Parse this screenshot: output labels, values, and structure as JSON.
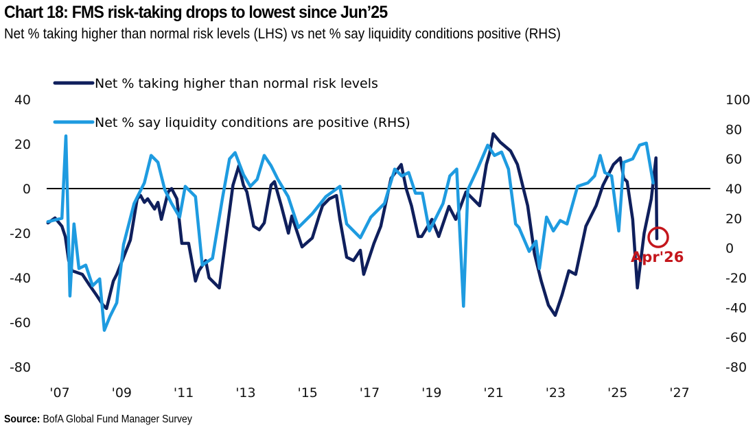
{
  "header": {
    "title": "Chart 18: FMS risk-taking drops to lowest since Jun’25",
    "subtitle": "Net % taking higher than normal risk levels (LHS) vs net % say liquidity conditions positive (RHS)"
  },
  "footer": {
    "source_label": "Source:",
    "source_text": " BofA Global Fund Manager Survey"
  },
  "colors": {
    "risk_series": "#0f1f5c",
    "liquidity_series": "#1e9be0",
    "zero_line": "#000000",
    "annotation": "#c4161c"
  },
  "chart_data": {
    "type": "line",
    "title": "Chart 18: FMS risk-taking drops to lowest since Jun’25",
    "subtitle": "Net % taking higher than normal risk levels (LHS) vs net % say liquidity conditions positive (RHS)",
    "xlabel": "",
    "ylabel_left": "",
    "ylabel_right": "",
    "x_range": [
      2006.6,
      2028.2
    ],
    "x_ticks": [
      2007,
      2009,
      2011,
      2013,
      2015,
      2017,
      2019,
      2021,
      2023,
      2025,
      2027
    ],
    "x_tick_labels": [
      "'07",
      "'09",
      "'11",
      "'13",
      "'15",
      "'17",
      "'19",
      "'21",
      "'23",
      "'25",
      "'27"
    ],
    "ylim_left": [
      -80,
      40
    ],
    "y_ticks_left": [
      40,
      20,
      0,
      -20,
      -40,
      -60,
      -80
    ],
    "y_tick_labels_left": [
      "40",
      "20",
      "0",
      "-20",
      "-40",
      "-60",
      "-80"
    ],
    "ylim_right": [
      -80,
      100
    ],
    "y_ticks_right": [
      100,
      80,
      60,
      40,
      20,
      0,
      -20,
      -40,
      -60,
      -80
    ],
    "y_tick_labels_right": [
      "100",
      "80",
      "60",
      "40",
      "20",
      "0",
      "-20",
      "-40",
      "-60",
      "-80"
    ],
    "reference_line": {
      "axis": "left",
      "value": 0
    },
    "grid": false,
    "legend_position": "top-left",
    "series": [
      {
        "name": "Net % taking higher than normal risk levels",
        "axis": "left",
        "x": [
          2006.62,
          2006.85,
          2007.07,
          2007.18,
          2007.29,
          2007.4,
          2007.73,
          2007.95,
          2008.18,
          2008.4,
          2008.51,
          2008.62,
          2008.73,
          2008.84,
          2009.06,
          2009.28,
          2009.5,
          2009.61,
          2009.73,
          2009.84,
          2010.06,
          2010.17,
          2010.28,
          2010.5,
          2010.61,
          2010.78,
          2010.94,
          2011.16,
          2011.38,
          2011.49,
          2011.71,
          2011.82,
          2012.15,
          2012.59,
          2012.78,
          2012.93,
          2013.04,
          2013.26,
          2013.44,
          2013.6,
          2013.82,
          2013.93,
          2014.15,
          2014.38,
          2014.49,
          2014.82,
          2015.15,
          2015.37,
          2015.48,
          2015.7,
          2015.93,
          2016.04,
          2016.26,
          2016.48,
          2016.7,
          2016.81,
          2017.14,
          2017.36,
          2017.69,
          2018.02,
          2018.18,
          2018.35,
          2018.57,
          2018.68,
          2019.01,
          2019.23,
          2019.56,
          2019.78,
          2020.11,
          2020.55,
          2020.77,
          2020.88,
          2020.99,
          2021.21,
          2021.55,
          2021.77,
          2021.99,
          2022.1,
          2022.32,
          2022.54,
          2022.77,
          2022.99,
          2023.21,
          2023.43,
          2023.65,
          2023.98,
          2024.31,
          2024.53,
          2024.87,
          2025.09,
          2025.2,
          2025.31,
          2025.49,
          2025.64,
          2025.86,
          2026.09,
          2026.24,
          2026.27
        ],
        "values": [
          -15.4,
          -13.2,
          -16.9,
          -21.5,
          -32.3,
          -36.9,
          -38.5,
          -43.1,
          -47.7,
          -52.3,
          -53.8,
          -47.7,
          -41.5,
          -38.5,
          -30.8,
          -23.1,
          -4.6,
          -3.1,
          -6.2,
          -4.6,
          -9.2,
          -6.2,
          -13.8,
          -1.5,
          0.0,
          -4.6,
          -24.6,
          -24.6,
          -41.5,
          -36.9,
          -32.3,
          -40.0,
          -44.6,
          1.5,
          10.2,
          1.5,
          -1.5,
          -16.9,
          -18.5,
          -15.4,
          1.5,
          3.1,
          -7.7,
          -20.0,
          -12.3,
          -26.2,
          -22.2,
          -12.3,
          -7.7,
          -4.6,
          -3.1,
          -13.8,
          -30.8,
          -32.3,
          -27.7,
          -38.5,
          -24.6,
          -16.9,
          4.6,
          10.8,
          0.0,
          -7.7,
          -21.5,
          -21.5,
          -13.8,
          -21.5,
          -8.0,
          -13.8,
          -1.5,
          -7.7,
          10.8,
          16.3,
          24.6,
          20.9,
          16.9,
          10.8,
          -1.5,
          -7.7,
          -29.2,
          -41.5,
          -52.3,
          -56.9,
          -47.7,
          -36.9,
          -38.5,
          -16.9,
          -7.7,
          1.5,
          10.8,
          13.8,
          4.6,
          3.1,
          -13.8,
          -44.6,
          -20.0,
          -4.6,
          13.8,
          -22.5
        ]
      },
      {
        "name": "Net % say liquidity conditions are positive (RHS)",
        "axis": "right",
        "x": [
          2006.62,
          2007.07,
          2007.2,
          2007.33,
          2007.46,
          2007.62,
          2007.84,
          2008.06,
          2008.29,
          2008.44,
          2008.62,
          2008.84,
          2009.06,
          2009.4,
          2009.73,
          2009.95,
          2010.17,
          2010.39,
          2010.61,
          2010.87,
          2011.05,
          2011.38,
          2011.6,
          2011.93,
          2012.26,
          2012.48,
          2012.66,
          2012.93,
          2013.15,
          2013.37,
          2013.6,
          2013.82,
          2014.04,
          2014.37,
          2014.7,
          2015.15,
          2015.59,
          2016.04,
          2016.26,
          2016.7,
          2017.04,
          2017.48,
          2017.81,
          2018.04,
          2018.26,
          2018.48,
          2018.7,
          2018.93,
          2019.37,
          2019.59,
          2019.81,
          2020.03,
          2020.17,
          2020.48,
          2020.81,
          2021.03,
          2021.26,
          2021.48,
          2021.71,
          2021.82,
          2022.15,
          2022.37,
          2022.48,
          2022.71,
          2022.93,
          2023.15,
          2023.37,
          2023.71,
          2024.04,
          2024.26,
          2024.44,
          2024.59,
          2024.81,
          2025.04,
          2025.2,
          2025.49,
          2025.71,
          2025.93,
          2026.15
        ],
        "values": [
          17.7,
          20.0,
          75.4,
          -32.3,
          16.2,
          -13.8,
          -11.5,
          -25.4,
          -20.8,
          -55.4,
          -46.2,
          -36.9,
          2.3,
          30.0,
          43.8,
          62.3,
          57.7,
          39.2,
          30.0,
          20.8,
          41.5,
          34.6,
          -11.5,
          -6.9,
          34.6,
          60.0,
          64.2,
          49.4,
          41.5,
          46.2,
          62.3,
          55.4,
          46.2,
          34.6,
          13.8,
          23.1,
          34.6,
          41.5,
          16.2,
          6.9,
          20.8,
          30.0,
          53.1,
          48.5,
          50.8,
          36.9,
          36.9,
          11.5,
          30.0,
          48.5,
          53.1,
          -39.2,
          39.2,
          53.1,
          69.2,
          62.3,
          64.6,
          53.1,
          16.2,
          13.8,
          -2.3,
          4.6,
          -13.8,
          20.8,
          11.5,
          18.5,
          16.2,
          41.5,
          43.8,
          48.5,
          62.3,
          50.8,
          48.5,
          11.5,
          57.7,
          60.0,
          69.2,
          70.6,
          43.8
        ]
      }
    ],
    "annotations": [
      {
        "text": "Apr'26",
        "type": "circle",
        "series": "Net % taking higher than normal risk levels",
        "x": 2026.27,
        "value": -22.5
      }
    ]
  },
  "legend": {
    "items": [
      {
        "label": "Net % taking higher than normal risk levels"
      },
      {
        "label": "Net % say liquidity conditions are positive (RHS)"
      }
    ]
  }
}
